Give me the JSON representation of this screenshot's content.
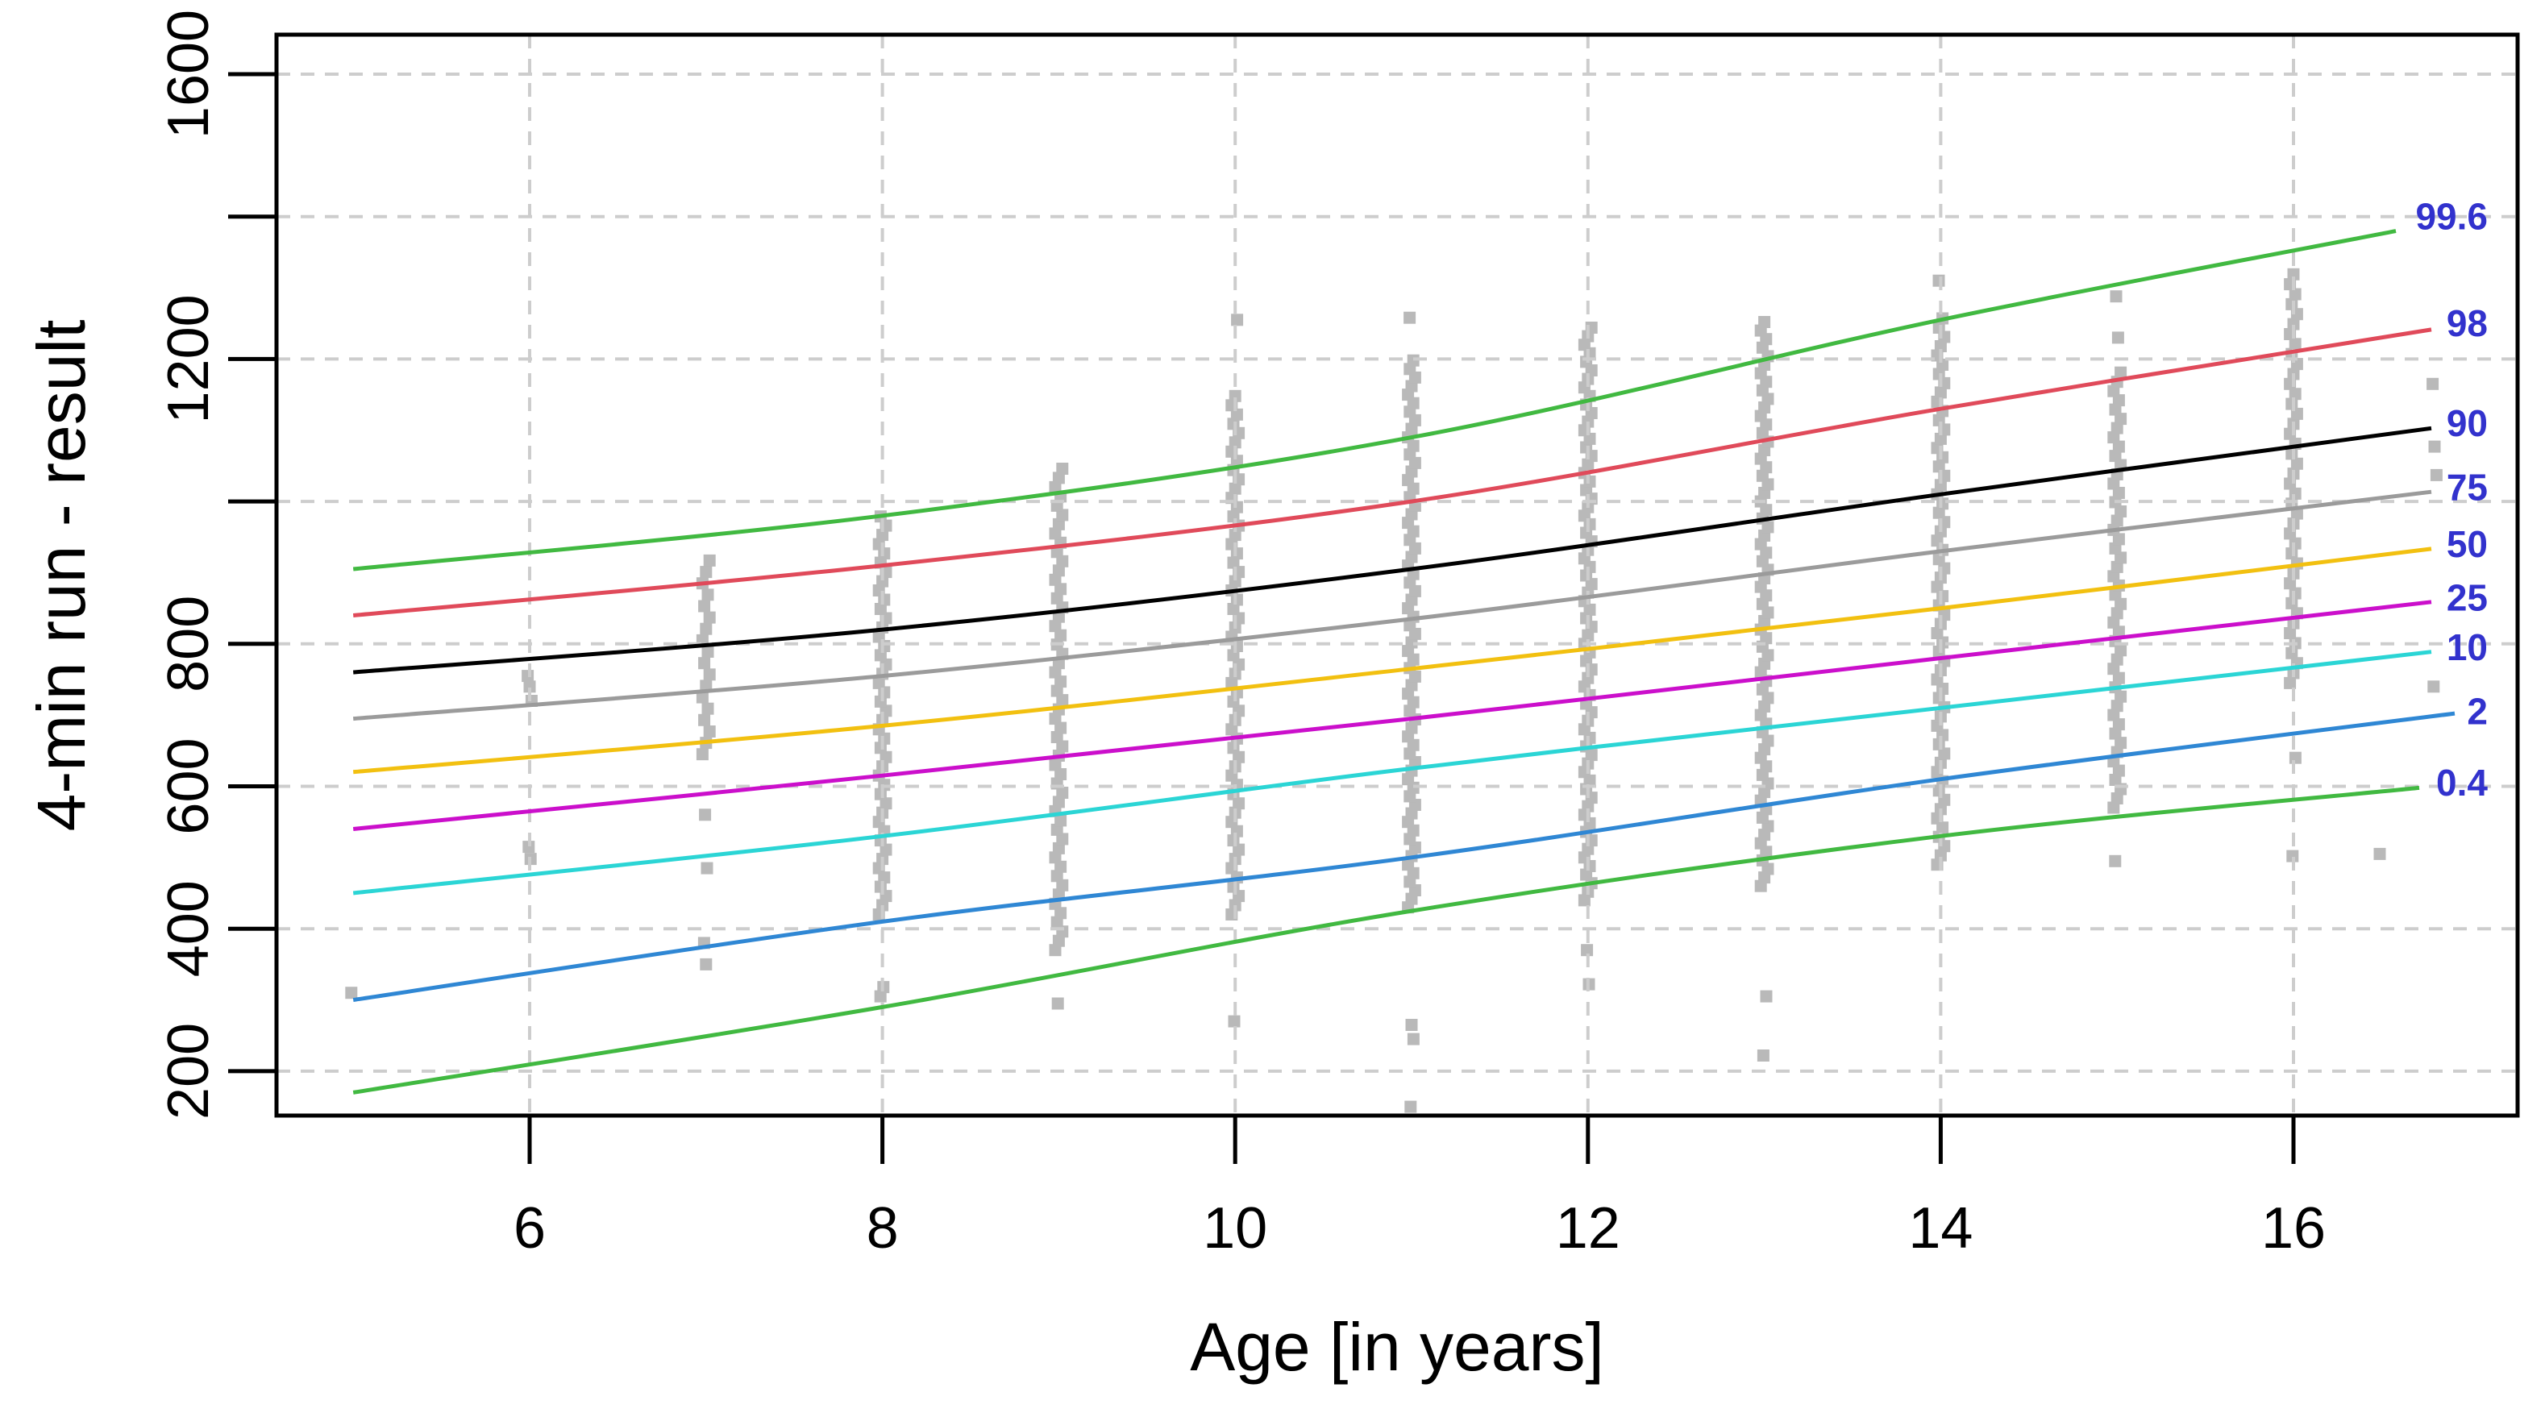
{
  "chart_data": {
    "type": "scatter",
    "subtype": "centile-growth-chart",
    "title": "",
    "xlabel": "Age [in years]",
    "ylabel": "4-min run - result",
    "x_ticks": [
      6,
      8,
      10,
      12,
      14,
      16
    ],
    "x_tick_labels": [
      "6",
      "8",
      "10",
      "12",
      "14",
      "16"
    ],
    "y_ticks": [
      200,
      400,
      600,
      800,
      1000,
      1200,
      1400,
      1600
    ],
    "y_ticks_labeled": [
      200,
      400,
      600,
      800,
      1200,
      1600
    ],
    "y_tick_labels": [
      "200",
      "400",
      "600",
      "800",
      "1200",
      "1600"
    ],
    "xlim": [
      4.57,
      17.27
    ],
    "ylim": [
      141,
      1656
    ],
    "grid": true,
    "grid_color": "#cdcdcd",
    "axis_color": "#000000",
    "centile_label_color": "#3232cd",
    "legend_position": "right-edge-line-labels",
    "centile_ages": [
      5,
      8,
      11,
      14,
      17
    ],
    "centiles": [
      {
        "label": "99.6",
        "color": "#41b941",
        "values": [
          905,
          980,
          1090,
          1255,
          1400
        ]
      },
      {
        "label": "98",
        "color": "#e04a5a",
        "values": [
          840,
          910,
          1000,
          1130,
          1250
        ]
      },
      {
        "label": "90",
        "color": "#000000",
        "values": [
          760,
          820,
          905,
          1010,
          1110
        ]
      },
      {
        "label": "75",
        "color": "#9b9b9b",
        "values": [
          695,
          755,
          835,
          930,
          1020
        ]
      },
      {
        "label": "50",
        "color": "#f2c010",
        "values": [
          620,
          685,
          765,
          850,
          940
        ]
      },
      {
        "label": "25",
        "color": "#cb0fcb",
        "values": [
          540,
          615,
          695,
          780,
          865
        ]
      },
      {
        "label": "10",
        "color": "#2bd5d5",
        "values": [
          450,
          530,
          625,
          710,
          795
        ]
      },
      {
        "label": "2",
        "color": "#2f87d4",
        "values": [
          300,
          410,
          500,
          610,
          705
        ]
      },
      {
        "label": "0.4",
        "color": "#41b941",
        "values": [
          170,
          290,
          425,
          530,
          605
        ]
      }
    ],
    "scatter": {
      "color": "#b9b9b9",
      "marker": "square",
      "size": 15,
      "strips": [
        {
          "age": 5,
          "points": [
            310
          ]
        },
        {
          "age": 6,
          "points": [
            755,
            740,
            720,
            515,
            498
          ]
        },
        {
          "age": 7,
          "range": [
            645,
            930
          ],
          "step": 16,
          "points": [
            560,
            485,
            380,
            350
          ]
        },
        {
          "age": 8,
          "range": [
            420,
            985
          ],
          "step": 13,
          "points": [
            318,
            305
          ]
        },
        {
          "age": 9,
          "range": [
            370,
            1055
          ],
          "step": 13,
          "points": [
            295
          ]
        },
        {
          "age": 10,
          "range": [
            420,
            1160
          ],
          "step": 13,
          "points": [
            1255,
            270
          ]
        },
        {
          "age": 11,
          "range": [
            430,
            1205
          ],
          "step": 12,
          "points": [
            1258,
            265,
            245,
            150
          ]
        },
        {
          "age": 12,
          "range": [
            440,
            1255
          ],
          "step": 12,
          "points": [
            370,
            322
          ]
        },
        {
          "age": 13,
          "range": [
            460,
            1260
          ],
          "step": 12,
          "points": [
            305,
            222
          ]
        },
        {
          "age": 14,
          "range": [
            490,
            1260
          ],
          "step": 13,
          "points": [
            1310
          ]
        },
        {
          "age": 15,
          "range": [
            570,
            1190
          ],
          "step": 13,
          "points": [
            1288,
            1230,
            495
          ]
        },
        {
          "age": 16,
          "range": [
            745,
            1320
          ],
          "step": 14,
          "points": [
            640,
            502
          ]
        },
        {
          "age": 16.5,
          "points": [
            505
          ]
        },
        {
          "age": 16.8,
          "points": [
            1165,
            1077,
            1037,
            740
          ]
        }
      ]
    }
  }
}
